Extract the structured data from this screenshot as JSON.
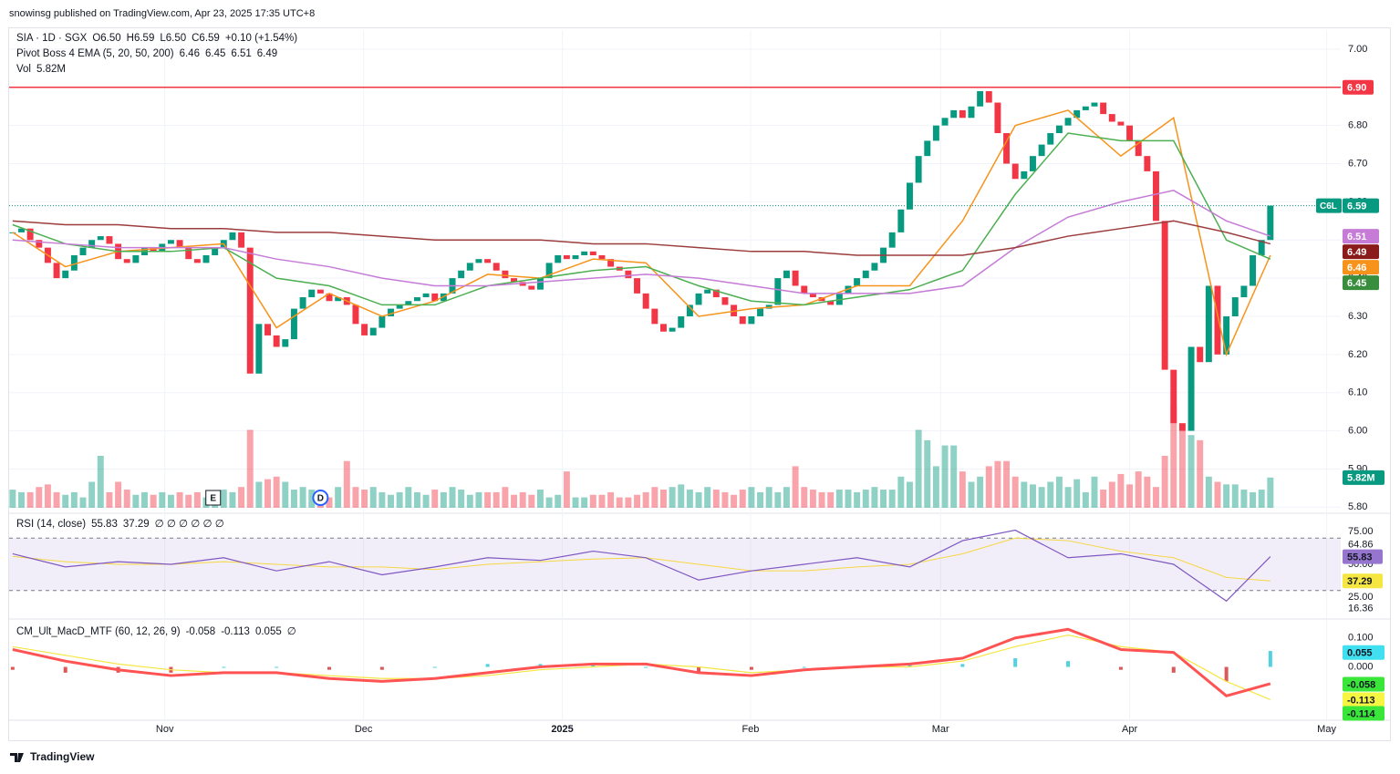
{
  "header": {
    "publisher": "snowinsg published on TradingView.com, Apr 23, 2025 17:35 UTC+8",
    "brand": "TradingView"
  },
  "chart_data": {
    "type": "candlestick",
    "symbol": "SIA · 1D · SGX",
    "ohlc_legend": [
      "O6.50",
      "H6.59",
      "L6.50",
      "C6.59",
      "+0.10 (+1.54%)"
    ],
    "ema_legend": {
      "name": "Pivot Boss 4 EMA (5, 20, 50, 200)",
      "values": [
        "6.46",
        "6.45",
        "6.51",
        "6.49"
      ]
    },
    "vol_legend": {
      "name": "Vol",
      "value": "5.82M"
    },
    "close": [
      6.52,
      6.53,
      6.5,
      6.48,
      6.44,
      6.4,
      6.42,
      6.46,
      6.48,
      6.5,
      6.51,
      6.49,
      6.45,
      6.44,
      6.46,
      6.48,
      6.47,
      6.49,
      6.5,
      6.48,
      6.45,
      6.44,
      6.46,
      6.48,
      6.5,
      6.52,
      6.48,
      6.15,
      6.28,
      6.25,
      6.22,
      6.24,
      6.32,
      6.35,
      6.37,
      6.36,
      6.34,
      6.35,
      6.33,
      6.28,
      6.25,
      6.27,
      6.3,
      6.32,
      6.33,
      6.34,
      6.35,
      6.36,
      6.34,
      6.36,
      6.4,
      6.42,
      6.44,
      6.45,
      6.44,
      6.42,
      6.4,
      6.39,
      6.38,
      6.37,
      6.4,
      6.44,
      6.46,
      6.45,
      6.46,
      6.47,
      6.46,
      6.45,
      6.43,
      6.42,
      6.4,
      6.36,
      6.32,
      6.28,
      6.26,
      6.27,
      6.3,
      6.33,
      6.36,
      6.37,
      6.35,
      6.33,
      6.3,
      6.28,
      6.3,
      6.32,
      6.33,
      6.4,
      6.42,
      6.38,
      6.36,
      6.35,
      6.34,
      6.33,
      6.36,
      6.38,
      6.4,
      6.42,
      6.44,
      6.48,
      6.52,
      6.58,
      6.65,
      6.72,
      6.76,
      6.8,
      6.82,
      6.84,
      6.82,
      6.85,
      6.89,
      6.86,
      6.78,
      6.7,
      6.66,
      6.68,
      6.72,
      6.75,
      6.78,
      6.8,
      6.82,
      6.84,
      6.85,
      6.86,
      6.83,
      6.81,
      6.8,
      6.76,
      6.72,
      6.68,
      6.55,
      6.16,
      6.02,
      6.0,
      6.22,
      6.18,
      6.38,
      6.2,
      6.3,
      6.35,
      6.38,
      6.46,
      6.5,
      6.59
    ],
    "volume": [
      3.5,
      3,
      3,
      4,
      4.5,
      3,
      2.5,
      3,
      2,
      5,
      10,
      3,
      5,
      3.5,
      2.5,
      3,
      2.5,
      3,
      2.5,
      3,
      2.5,
      3,
      2,
      2.5,
      3.5,
      3,
      4,
      15,
      5,
      5.5,
      6,
      5,
      3.5,
      4,
      3.5,
      2.5,
      2,
      4,
      9,
      4,
      3.5,
      4,
      3,
      2.5,
      3,
      4,
      3,
      2.5,
      3.5,
      3,
      4,
      3.5,
      2.5,
      3,
      3,
      3,
      4,
      2.5,
      3,
      2.5,
      3.5,
      2,
      2.5,
      7,
      2,
      2,
      2.5,
      2.5,
      3,
      2,
      2,
      2.5,
      3,
      4,
      3.5,
      4,
      4.5,
      3.5,
      3,
      4,
      3.5,
      3,
      2.5,
      3.5,
      4,
      3,
      4,
      3,
      4,
      8,
      4,
      3.5,
      3,
      3,
      3.5,
      3.5,
      3,
      3.5,
      4,
      3.5,
      3.5,
      6,
      5,
      15,
      13,
      8,
      12,
      12,
      7,
      5,
      6,
      8,
      9,
      9,
      6,
      5,
      4.5,
      4,
      5,
      6,
      4,
      5.5,
      3,
      6,
      3.5,
      5,
      6.5,
      4.5,
      7,
      6,
      4,
      10,
      20,
      15,
      14,
      13,
      6,
      5,
      4.5,
      4.5,
      3.5,
      3,
      3.5,
      5.82
    ],
    "volume_label": "5.82M",
    "colors": {
      "up": "#089981",
      "down": "#f23645"
    },
    "ylim": [
      5.784,
      7.05
    ],
    "yticks": [
      {
        "value": 5.8,
        "label": "5.80"
      },
      {
        "value": 5.9,
        "label": "5.90"
      },
      {
        "value": 6.0,
        "label": "6.00"
      },
      {
        "value": 6.1,
        "label": "6.10"
      },
      {
        "value": 6.2,
        "label": "6.20"
      },
      {
        "value": 6.3,
        "label": "6.30"
      },
      {
        "value": 6.4,
        "label": "6.40"
      },
      {
        "value": 6.5,
        "label": "6.50"
      },
      {
        "value": 6.6,
        "label": "6.60"
      },
      {
        "value": 6.7,
        "label": "6.70"
      },
      {
        "value": 6.8,
        "label": "6.80"
      },
      {
        "value": 6.9,
        "label": "6.90"
      },
      {
        "value": 7.0,
        "label": "7.00"
      }
    ],
    "xlim": [
      -0.4,
      151
    ],
    "xticks": [
      {
        "value": 17.3,
        "label": "Nov"
      },
      {
        "value": 39.9,
        "label": "Dec"
      },
      {
        "value": 62.5,
        "label": "2025"
      },
      {
        "value": 83.9,
        "label": "Feb"
      },
      {
        "value": 105.5,
        "label": "Mar"
      },
      {
        "value": 127,
        "label": "Apr"
      },
      {
        "value": 149.4,
        "label": "May"
      }
    ],
    "hline": {
      "value": 6.9,
      "label": "6.90",
      "color": "#f23645"
    },
    "last": {
      "value": 6.59,
      "label": "6.59",
      "tag": "C6L"
    },
    "price_labels": [
      {
        "value": 6.51,
        "label": "6.51",
        "color": "#c67bd6"
      },
      {
        "value": 6.49,
        "label": "6.49",
        "color": "#8b1a1a"
      },
      {
        "value": 6.46,
        "label": "6.46",
        "color": "#f7931a"
      },
      {
        "value": 6.45,
        "label": "6.45",
        "color": "#388e3c"
      }
    ],
    "events": [
      {
        "x": 22.8,
        "label": "E"
      },
      {
        "x": 35,
        "label": "D"
      }
    ],
    "ind_x": [
      0,
      6,
      12,
      18,
      24,
      30,
      36,
      42,
      48,
      54,
      60,
      66,
      72,
      78,
      84,
      90,
      96,
      102,
      108,
      114,
      120,
      126,
      132,
      138,
      143
    ],
    "emas": [
      {
        "name": "5",
        "color": "#f7931a",
        "values": [
          6.52,
          6.43,
          6.47,
          6.48,
          6.49,
          6.27,
          6.36,
          6.3,
          6.34,
          6.41,
          6.4,
          6.45,
          6.44,
          6.3,
          6.32,
          6.33,
          6.38,
          6.38,
          6.55,
          6.8,
          6.84,
          6.72,
          6.82,
          6.2,
          6.46
        ]
      },
      {
        "name": "20",
        "color": "#4caf50",
        "values": [
          6.54,
          6.49,
          6.47,
          6.47,
          6.48,
          6.4,
          6.38,
          6.33,
          6.33,
          6.38,
          6.4,
          6.42,
          6.43,
          6.38,
          6.34,
          6.33,
          6.35,
          6.37,
          6.42,
          6.62,
          6.78,
          6.76,
          6.76,
          6.5,
          6.45
        ]
      },
      {
        "name": "50",
        "color": "#c67bd6",
        "values": [
          6.5,
          6.49,
          6.48,
          6.48,
          6.48,
          6.45,
          6.43,
          6.4,
          6.38,
          6.38,
          6.39,
          6.4,
          6.41,
          6.4,
          6.38,
          6.36,
          6.36,
          6.36,
          6.38,
          6.48,
          6.56,
          6.6,
          6.63,
          6.55,
          6.51
        ]
      },
      {
        "name": "200",
        "color": "#9c3d3d",
        "values": [
          6.55,
          6.54,
          6.54,
          6.53,
          6.53,
          6.52,
          6.52,
          6.51,
          6.5,
          6.5,
          6.5,
          6.49,
          6.49,
          6.48,
          6.47,
          6.47,
          6.46,
          6.46,
          6.46,
          6.48,
          6.51,
          6.53,
          6.55,
          6.52,
          6.49
        ]
      }
    ],
    "rsi": {
      "legend": "RSI (14, close)",
      "legend_values": [
        "55.83",
        "37.29",
        "∅ ∅ ∅ ∅ ∅ ∅"
      ],
      "values": [
        58,
        48,
        52,
        50,
        55,
        45,
        52,
        42,
        48,
        55,
        53,
        60,
        55,
        38,
        45,
        50,
        55,
        48,
        68,
        76,
        55,
        58,
        50,
        22,
        55.83
      ],
      "ma": [
        56,
        52,
        50,
        50,
        52,
        50,
        48,
        48,
        46,
        50,
        52,
        54,
        55,
        50,
        45,
        45,
        48,
        50,
        58,
        70,
        68,
        60,
        55,
        40,
        37.29
      ],
      "ylim": [
        9,
        87.5
      ],
      "band": [
        70,
        30
      ],
      "yticks": [
        {
          "value": 75,
          "label": "75.00"
        },
        {
          "value": 64.86,
          "label": "64.86"
        },
        {
          "value": 50,
          "label": "50.00"
        },
        {
          "value": 25,
          "label": "25.00"
        },
        {
          "value": 16.36,
          "label": "16.36"
        }
      ],
      "value_labels": [
        {
          "value": 55.83,
          "label": "55.83",
          "color": "#9575cd"
        },
        {
          "value": 37.29,
          "label": "37.29",
          "color": "#f5e642"
        }
      ]
    },
    "macd": {
      "legend": "CM_Ult_MacD_MTF (60, 12, 26, 9)",
      "legend_values": [
        "-0.058",
        "-0.113",
        "0.055",
        "∅"
      ],
      "macd": [
        0.06,
        0.02,
        -0.01,
        -0.03,
        -0.02,
        -0.02,
        -0.04,
        -0.05,
        -0.04,
        -0.02,
        0.0,
        0.01,
        0.01,
        -0.02,
        -0.03,
        -0.01,
        0.0,
        0.01,
        0.03,
        0.1,
        0.13,
        0.06,
        0.05,
        -0.1,
        -0.058
      ],
      "signal": [
        0.07,
        0.04,
        0.01,
        -0.01,
        -0.02,
        -0.02,
        -0.03,
        -0.04,
        -0.04,
        -0.03,
        -0.01,
        0.0,
        0.01,
        0.0,
        -0.02,
        -0.01,
        0.0,
        0.0,
        0.02,
        0.07,
        0.11,
        0.07,
        0.05,
        -0.05,
        -0.113
      ],
      "hist": [
        -0.01,
        -0.02,
        -0.02,
        -0.02,
        0.0,
        0.0,
        -0.01,
        -0.01,
        0.0,
        0.01,
        0.01,
        0.01,
        0.0,
        -0.02,
        -0.01,
        0.0,
        0.0,
        0.01,
        0.01,
        0.03,
        0.02,
        -0.01,
        -0.02,
        -0.05,
        0.055
      ],
      "ylim": [
        -0.184,
        0.159
      ],
      "yticks": [
        {
          "value": 0.1,
          "label": "0.100"
        },
        {
          "value": 0,
          "label": "0.000"
        }
      ],
      "value_labels": [
        {
          "value": 0.055,
          "label": "0.055",
          "color": "#40e0f0"
        },
        {
          "value": -0.058,
          "label": "-0.058",
          "color": "#39e639"
        },
        {
          "value": -0.113,
          "label": "-0.113",
          "color": "#f5f542"
        },
        {
          "value": -0.114,
          "label": "-0.114",
          "color": "#39e639"
        }
      ]
    }
  }
}
